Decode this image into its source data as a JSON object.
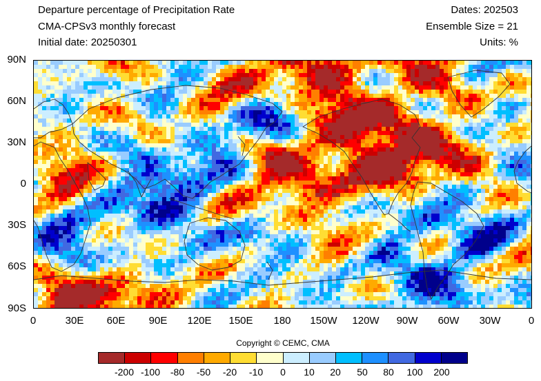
{
  "header": {
    "title": "Departure percentage of Precipitation Rate",
    "model": "CMA-CPSv3 monthly forecast",
    "initial_date": "Initial date: 20250301",
    "dates": "Dates: 202503",
    "ensemble": "Ensemble Size = 21",
    "units": "Units: %"
  },
  "axes": {
    "y_labels": [
      "90N",
      "60N",
      "30N",
      "0",
      "30S",
      "60S",
      "90S"
    ],
    "x_labels": [
      "0",
      "30E",
      "60E",
      "90E",
      "120E",
      "150E",
      "180",
      "150W",
      "120W",
      "90W",
      "60W",
      "30W",
      "0"
    ]
  },
  "copyright": "Copyright © CEMC, CMA",
  "colorbar": {
    "colors": [
      "#a52a2a",
      "#cc0000",
      "#ff0000",
      "#ff7f00",
      "#ffaa00",
      "#ffdd33",
      "#ffffcc",
      "#cceeff",
      "#99ccff",
      "#00bfff",
      "#1e90ff",
      "#4169e1",
      "#0000cd",
      "#00008b"
    ],
    "labels": [
      "-200",
      "-100",
      "-80",
      "-50",
      "-20",
      "-10",
      "0",
      "10",
      "20",
      "50",
      "80",
      "100",
      "200"
    ]
  }
}
